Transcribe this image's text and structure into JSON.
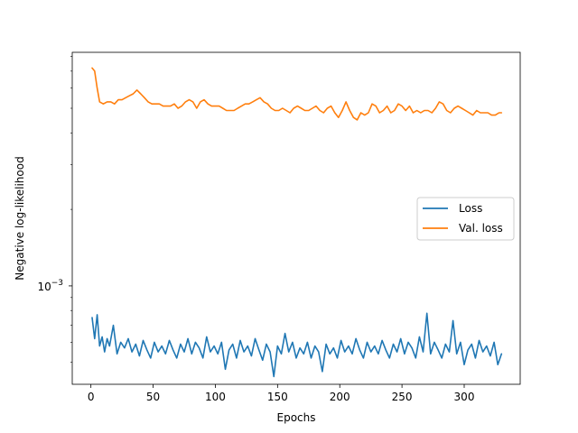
{
  "chart_data": {
    "type": "line",
    "title": "",
    "xlabel": "Epochs",
    "ylabel": "Negative log-likelihood",
    "xlim": [
      -15,
      345
    ],
    "ylim": [
      0.00041,
      0.0083
    ],
    "yscale": "log",
    "x_ticks": [
      0,
      50,
      100,
      150,
      200,
      250,
      300
    ],
    "x_tick_labels": [
      "0",
      "50",
      "100",
      "150",
      "200",
      "250",
      "300"
    ],
    "y_major_ticks": [
      0.001
    ],
    "y_major_tick_labels": [
      "10",
      "−3"
    ],
    "grid": false,
    "legend_position": "center-right",
    "series": [
      {
        "name": "Loss",
        "color": "#1f77b4",
        "x": [
          1,
          3,
          5,
          7,
          9,
          11,
          13,
          15,
          18,
          21,
          24,
          27,
          30,
          33,
          36,
          39,
          42,
          45,
          48,
          51,
          54,
          57,
          60,
          63,
          66,
          69,
          72,
          75,
          78,
          81,
          84,
          87,
          90,
          93,
          96,
          99,
          102,
          105,
          108,
          111,
          114,
          117,
          120,
          123,
          126,
          129,
          132,
          135,
          138,
          141,
          144,
          147,
          150,
          153,
          156,
          159,
          162,
          165,
          168,
          171,
          174,
          177,
          180,
          183,
          186,
          189,
          192,
          195,
          198,
          201,
          204,
          207,
          210,
          213,
          216,
          219,
          222,
          225,
          228,
          231,
          234,
          237,
          240,
          243,
          246,
          249,
          252,
          255,
          258,
          261,
          264,
          267,
          270,
          273,
          276,
          279,
          282,
          285,
          288,
          291,
          294,
          297,
          300,
          303,
          306,
          309,
          312,
          315,
          318,
          321,
          324,
          327,
          330
        ],
        "values": [
          0.00075,
          0.00062,
          0.00077,
          0.00058,
          0.00063,
          0.00055,
          0.00062,
          0.00058,
          0.0007,
          0.00054,
          0.0006,
          0.00057,
          0.00062,
          0.00055,
          0.00059,
          0.00053,
          0.00061,
          0.00056,
          0.00052,
          0.0006,
          0.00055,
          0.00058,
          0.00054,
          0.00061,
          0.00056,
          0.00052,
          0.00059,
          0.00055,
          0.00062,
          0.00054,
          0.0006,
          0.00057,
          0.00052,
          0.00063,
          0.00055,
          0.00058,
          0.00054,
          0.0006,
          0.00047,
          0.00056,
          0.00059,
          0.00052,
          0.00061,
          0.00055,
          0.00058,
          0.00053,
          0.00062,
          0.00056,
          0.00051,
          0.00059,
          0.00055,
          0.00044,
          0.00058,
          0.00054,
          0.00065,
          0.00055,
          0.0006,
          0.00052,
          0.00057,
          0.00054,
          0.0006,
          0.00052,
          0.00058,
          0.00055,
          0.00046,
          0.00059,
          0.00054,
          0.00057,
          0.00052,
          0.00061,
          0.00055,
          0.00058,
          0.00054,
          0.00062,
          0.00056,
          0.00052,
          0.0006,
          0.00055,
          0.00058,
          0.00054,
          0.00061,
          0.00056,
          0.00052,
          0.00059,
          0.00055,
          0.00062,
          0.00054,
          0.0006,
          0.00057,
          0.00052,
          0.00063,
          0.00055,
          0.00078,
          0.00054,
          0.0006,
          0.00056,
          0.00052,
          0.00059,
          0.00055,
          0.00073,
          0.00054,
          0.0006,
          0.00049,
          0.00056,
          0.00059,
          0.00052,
          0.00061,
          0.00055,
          0.00058,
          0.00053,
          0.0006,
          0.00049,
          0.00054
        ]
      },
      {
        "name": "Val. loss",
        "color": "#ff7f0e",
        "x": [
          1,
          3,
          5,
          7,
          10,
          13,
          16,
          19,
          22,
          25,
          28,
          31,
          34,
          37,
          40,
          43,
          46,
          49,
          52,
          55,
          58,
          61,
          64,
          67,
          70,
          73,
          76,
          79,
          82,
          85,
          88,
          91,
          94,
          97,
          100,
          103,
          106,
          109,
          112,
          115,
          118,
          121,
          124,
          127,
          130,
          133,
          136,
          139,
          142,
          145,
          148,
          151,
          154,
          157,
          160,
          163,
          166,
          169,
          172,
          175,
          178,
          181,
          184,
          187,
          190,
          193,
          196,
          199,
          202,
          205,
          208,
          211,
          214,
          217,
          220,
          223,
          226,
          229,
          232,
          235,
          238,
          241,
          244,
          247,
          250,
          253,
          256,
          259,
          262,
          265,
          268,
          271,
          274,
          277,
          280,
          283,
          286,
          289,
          292,
          295,
          298,
          301,
          304,
          307,
          310,
          313,
          316,
          319,
          322,
          325,
          328,
          330
        ],
        "values": [
          0.0072,
          0.007,
          0.006,
          0.0053,
          0.0052,
          0.0053,
          0.0053,
          0.0052,
          0.0054,
          0.0054,
          0.0055,
          0.0056,
          0.0057,
          0.0059,
          0.0057,
          0.0055,
          0.0053,
          0.0052,
          0.0052,
          0.0052,
          0.0051,
          0.0051,
          0.0051,
          0.0052,
          0.005,
          0.0051,
          0.0053,
          0.0054,
          0.0053,
          0.005,
          0.0053,
          0.0054,
          0.0052,
          0.0051,
          0.0051,
          0.0051,
          0.005,
          0.0049,
          0.0049,
          0.0049,
          0.005,
          0.0051,
          0.0052,
          0.0052,
          0.0053,
          0.0054,
          0.0055,
          0.0053,
          0.0052,
          0.005,
          0.0049,
          0.0049,
          0.005,
          0.0049,
          0.0048,
          0.005,
          0.0051,
          0.005,
          0.0049,
          0.0049,
          0.005,
          0.0051,
          0.0049,
          0.0048,
          0.005,
          0.0051,
          0.0048,
          0.0046,
          0.0049,
          0.0053,
          0.0049,
          0.0046,
          0.0045,
          0.0048,
          0.0047,
          0.0048,
          0.0052,
          0.0051,
          0.0048,
          0.0049,
          0.0051,
          0.0048,
          0.0049,
          0.0052,
          0.0051,
          0.0049,
          0.0051,
          0.0048,
          0.0049,
          0.0048,
          0.0049,
          0.0049,
          0.0048,
          0.005,
          0.0053,
          0.0052,
          0.0049,
          0.0048,
          0.005,
          0.0051,
          0.005,
          0.0049,
          0.0048,
          0.0047,
          0.0049,
          0.0048,
          0.0048,
          0.0048,
          0.0047,
          0.0047,
          0.0048,
          0.0048
        ]
      }
    ]
  }
}
